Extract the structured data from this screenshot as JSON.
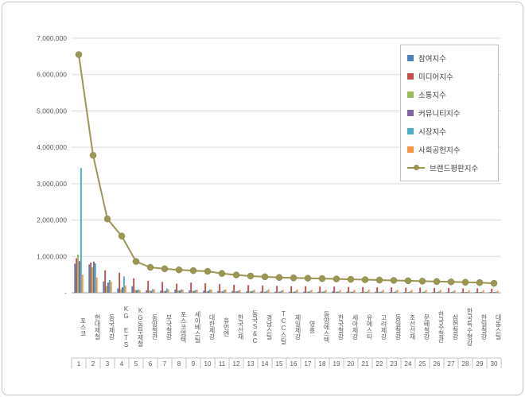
{
  "chart_data": {
    "type": "bar",
    "title": "",
    "xlabel": "",
    "ylabel": "",
    "ylim": [
      0,
      7000000
    ],
    "y_tick_interval": 1000000,
    "y_tick_labels": [
      "-",
      "1,000,000",
      "2,000,000",
      "3,000,000",
      "4,000,000",
      "5,000,000",
      "6,000,000",
      "7,000,000"
    ],
    "grid": true,
    "legend_position": "top-right",
    "categories": [
      "포스코",
      "현대제철",
      "동국제강",
      "KG ETS",
      "KG동부제철",
      "동양철관",
      "부국철강",
      "포스코엠텍",
      "세아베스틸",
      "대한제강",
      "휴먼엔",
      "한국선재",
      "동국S&C",
      "경남스틸",
      "TCC스틸",
      "제일제강",
      "영흥",
      "동양에스텍",
      "한국철강",
      "세아제강",
      "유에스티",
      "고려제강",
      "동일철강",
      "조선선재",
      "문배철강",
      "한국주철관",
      "삼현철강",
      "한국특수형강",
      "한일철강",
      "대동스틸"
    ],
    "ranks": [
      "1",
      "2",
      "3",
      "4",
      "5",
      "6",
      "7",
      "8",
      "9",
      "10",
      "11",
      "12",
      "13",
      "14",
      "15",
      "16",
      "17",
      "18",
      "19",
      "20",
      "21",
      "22",
      "23",
      "24",
      "25",
      "26",
      "27",
      "28",
      "29",
      "30"
    ],
    "series": [
      {
        "name": "참여지수",
        "type": "bar",
        "color": "#4F81BD",
        "values": [
          800000,
          780000,
          310000,
          120000,
          180000,
          70000,
          60000,
          90000,
          70000,
          60000,
          50000,
          50000,
          40000,
          40000,
          30000,
          30000,
          30000,
          30000,
          40000,
          30000,
          20000,
          30000,
          20000,
          20000,
          20000,
          20000,
          20000,
          20000,
          20000,
          20000
        ]
      },
      {
        "name": "미디어지수",
        "type": "bar",
        "color": "#C0504D",
        "values": [
          950000,
          830000,
          620000,
          550000,
          400000,
          330000,
          300000,
          250000,
          280000,
          260000,
          240000,
          220000,
          210000,
          200000,
          190000,
          180000,
          180000,
          170000,
          170000,
          160000,
          160000,
          150000,
          150000,
          140000,
          140000,
          130000,
          130000,
          120000,
          120000,
          110000
        ]
      },
      {
        "name": "소통지수",
        "type": "bar",
        "color": "#9BBB59",
        "values": [
          1050000,
          700000,
          190000,
          100000,
          80000,
          60000,
          50000,
          60000,
          50000,
          40000,
          40000,
          40000,
          40000,
          30000,
          30000,
          30000,
          30000,
          30000,
          30000,
          30000,
          30000,
          30000,
          20000,
          20000,
          20000,
          20000,
          20000,
          20000,
          20000,
          20000
        ]
      },
      {
        "name": "커뮤니티지수",
        "type": "bar",
        "color": "#8064A2",
        "values": [
          870000,
          860000,
          280000,
          150000,
          70000,
          50000,
          50000,
          60000,
          50000,
          50000,
          40000,
          40000,
          40000,
          30000,
          30000,
          30000,
          30000,
          30000,
          30000,
          20000,
          20000,
          20000,
          20000,
          20000,
          20000,
          20000,
          20000,
          20000,
          20000,
          20000
        ]
      },
      {
        "name": "시장지수",
        "type": "bar",
        "color": "#4BACC6",
        "values": [
          3430000,
          810000,
          350000,
          450000,
          90000,
          100000,
          120000,
          90000,
          80000,
          90000,
          80000,
          60000,
          60000,
          60000,
          60000,
          50000,
          50000,
          50000,
          40000,
          40000,
          40000,
          40000,
          50000,
          40000,
          40000,
          40000,
          40000,
          30000,
          30000,
          30000
        ]
      },
      {
        "name": "사회공헌지수",
        "type": "bar",
        "color": "#F79646",
        "values": [
          500000,
          420000,
          300000,
          200000,
          70000,
          100000,
          90000,
          90000,
          80000,
          90000,
          90000,
          80000,
          80000,
          90000,
          80000,
          90000,
          80000,
          80000,
          80000,
          80000,
          90000,
          80000,
          80000,
          80000,
          80000,
          80000,
          70000,
          70000,
          70000,
          60000
        ]
      },
      {
        "name": "브랜드평판지수",
        "type": "line",
        "color": "#9C9653",
        "values": [
          6550000,
          3780000,
          2030000,
          1560000,
          860000,
          700000,
          660000,
          630000,
          610000,
          590000,
          530000,
          490000,
          460000,
          440000,
          420000,
          410000,
          400000,
          390000,
          380000,
          370000,
          360000,
          350000,
          340000,
          330000,
          320000,
          310000,
          300000,
          290000,
          280000,
          260000
        ]
      }
    ]
  }
}
